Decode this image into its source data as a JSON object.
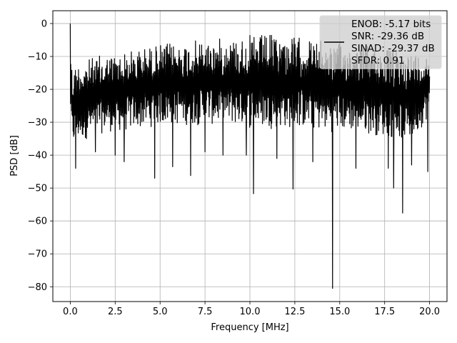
{
  "chart_data": {
    "type": "line",
    "title": "",
    "xlabel": "Frequency [MHz]",
    "ylabel": "PSD [dB]",
    "xlim": [
      -0.97,
      20.97
    ],
    "ylim": [
      -84.5,
      3.9
    ],
    "xticks": [
      0,
      2.5,
      5,
      7.5,
      10,
      12.5,
      15,
      17.5,
      20
    ],
    "xtick_labels": [
      "0.0",
      "2.5",
      "5.0",
      "7.5",
      "10.0",
      "12.5",
      "15.0",
      "17.5",
      "20.0"
    ],
    "yticks": [
      0,
      -10,
      -20,
      -30,
      -40,
      -50,
      -60,
      -70,
      -80
    ],
    "ytick_labels": [
      "0",
      "−10",
      "−20",
      "−30",
      "−40",
      "−50",
      "−60",
      "−70",
      "−80"
    ],
    "grid": true,
    "legend_position": "top-right",
    "series": [
      {
        "color": "#000000",
        "x_range": [
          0,
          20
        ],
        "envelope_upper": [
          [
            0,
            0
          ],
          [
            0.1,
            -13
          ],
          [
            0.5,
            -11
          ],
          [
            1,
            -10.5
          ],
          [
            2,
            -9
          ],
          [
            3,
            -8.5
          ],
          [
            4,
            -7
          ],
          [
            5,
            -6
          ],
          [
            6,
            -5.5
          ],
          [
            7,
            -5
          ],
          [
            8,
            -4.5
          ],
          [
            9,
            -4
          ],
          [
            10,
            -3.5
          ],
          [
            11,
            -3
          ],
          [
            12,
            -3.5
          ],
          [
            13,
            -4
          ],
          [
            14,
            -5
          ],
          [
            15,
            -5.5
          ],
          [
            16,
            -6
          ],
          [
            17,
            -6.5
          ],
          [
            18,
            -7.5
          ],
          [
            19,
            -8
          ],
          [
            20,
            -9
          ]
        ],
        "envelope_lower": [
          [
            0,
            -28
          ],
          [
            0.1,
            -38
          ],
          [
            0.5,
            -36
          ],
          [
            1,
            -35
          ],
          [
            2,
            -33
          ],
          [
            3,
            -33
          ],
          [
            4,
            -32
          ],
          [
            5,
            -31
          ],
          [
            6,
            -31
          ],
          [
            7,
            -31
          ],
          [
            8,
            -31
          ],
          [
            9,
            -31
          ],
          [
            10,
            -32
          ],
          [
            11,
            -32
          ],
          [
            12,
            -32
          ],
          [
            13,
            -32
          ],
          [
            14,
            -33
          ],
          [
            15,
            -33
          ],
          [
            16,
            -33
          ],
          [
            17,
            -34
          ],
          [
            18,
            -35
          ],
          [
            19,
            -36
          ],
          [
            20,
            -28
          ]
        ],
        "dips": [
          [
            0.3,
            -44
          ],
          [
            1.4,
            -39
          ],
          [
            2.5,
            -40
          ],
          [
            3.0,
            -42
          ],
          [
            4.7,
            -47
          ],
          [
            5.7,
            -43.5
          ],
          [
            6.7,
            -46.2
          ],
          [
            7.5,
            -39
          ],
          [
            8.5,
            -40
          ],
          [
            9.8,
            -40
          ],
          [
            10.2,
            -51.7
          ],
          [
            11.5,
            -41
          ],
          [
            12.4,
            -50.3
          ],
          [
            13.5,
            -42
          ],
          [
            14.6,
            -80.5
          ],
          [
            15.9,
            -44
          ],
          [
            17.7,
            -44
          ],
          [
            18.0,
            -50
          ],
          [
            18.5,
            -57.6
          ],
          [
            19.0,
            -43
          ],
          [
            19.9,
            -45
          ]
        ]
      }
    ],
    "legend": {
      "line_color": "#000000",
      "lines": [
        "ENOB: -5.17 bits",
        "SNR: -29.36 dB",
        "SINAD: -29.37 dB",
        "SFDR: 0.91"
      ]
    }
  }
}
